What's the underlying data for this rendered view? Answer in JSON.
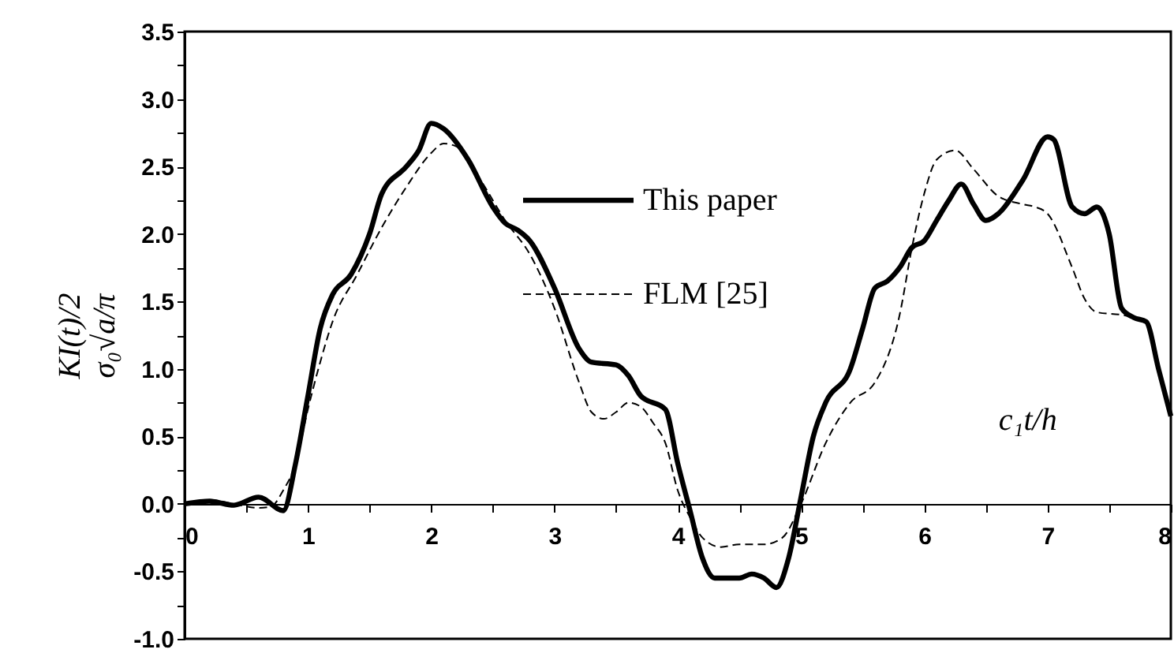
{
  "chart_data": {
    "type": "line",
    "xlabel": "c₁t/h",
    "ylabel": "KI(t)/2\nσ₀√a/π",
    "xlim": [
      0,
      8
    ],
    "ylim": [
      -1.0,
      3.5
    ],
    "xticks": [
      0,
      {
        "value": 0.5,
        "label": null
      },
      1,
      {
        "value": 1.5,
        "label": null
      },
      2,
      {
        "value": 2.5,
        "label": null
      },
      3,
      {
        "value": 3.5,
        "label": null
      },
      4,
      {
        "value": 4.5,
        "label": null
      },
      5,
      {
        "value": 5.5,
        "label": null
      },
      6,
      {
        "value": 6.5,
        "label": null
      },
      7,
      {
        "value": 7.5,
        "label": null
      },
      8
    ],
    "yticks": [
      {
        "value": -1,
        "label": "-1.0"
      },
      {
        "value": -0.75,
        "label": null
      },
      -0.5,
      {
        "value": -0.25,
        "label": null
      },
      {
        "value": 0,
        "label": "0.0"
      },
      {
        "value": 0.25,
        "label": null
      },
      0.5,
      {
        "value": 0.75,
        "label": null
      },
      {
        "value": 1,
        "label": "1.0"
      },
      {
        "value": 1.25,
        "label": null
      },
      1.5,
      {
        "value": 1.75,
        "label": null
      },
      {
        "value": 2,
        "label": "2.0"
      },
      {
        "value": 2.25,
        "label": null
      },
      2.5,
      {
        "value": 2.75,
        "label": null
      },
      {
        "value": 3,
        "label": "3.0"
      },
      {
        "value": 3.25,
        "label": null
      },
      3.5
    ],
    "grid": false,
    "legend": "top",
    "marker": "none",
    "series": [
      {
        "name": "This paper",
        "color": "#000000",
        "line_style": "solid",
        "x": [
          0,
          0.2,
          0.4,
          0.6,
          0.8,
          0.9,
          1.0,
          1.1,
          1.2,
          1.35,
          1.5,
          1.6,
          1.8,
          1.9,
          2.0,
          2.1,
          2.3,
          2.5,
          2.6,
          2.7,
          2.8,
          3.0,
          3.2,
          3.3,
          3.5,
          3.6,
          3.7,
          3.9,
          4.0,
          4.1,
          4.2,
          4.3,
          4.5,
          4.6,
          4.7,
          4.8,
          4.9,
          5.0,
          5.1,
          5.2,
          5.4,
          5.5,
          5.6,
          5.7,
          5.8,
          5.9,
          6.0,
          6.1,
          6.2,
          6.3,
          6.4,
          6.5,
          6.6,
          6.8,
          7.0,
          7.05,
          7.2,
          7.3,
          7.4,
          7.5,
          7.6,
          7.7,
          7.8,
          7.9,
          8.0
        ],
        "values": [
          0,
          0.02,
          -0.01,
          0.05,
          -0.05,
          0.3,
          0.8,
          1.3,
          1.55,
          1.7,
          2.0,
          2.3,
          2.5,
          2.62,
          2.82,
          2.78,
          2.55,
          2.2,
          2.08,
          2.03,
          1.95,
          1.6,
          1.15,
          1.05,
          1.03,
          0.95,
          0.8,
          0.7,
          0.3,
          -0.05,
          -0.4,
          -0.55,
          -0.55,
          -0.52,
          -0.55,
          -0.62,
          -0.4,
          0.05,
          0.5,
          0.75,
          1.0,
          1.3,
          1.6,
          1.65,
          1.75,
          1.9,
          1.95,
          2.1,
          2.25,
          2.37,
          2.22,
          2.1,
          2.15,
          2.4,
          2.72,
          2.7,
          2.2,
          2.15,
          2.2,
          2.0,
          1.45,
          1.38,
          1.35,
          1.0,
          0.65
        ]
      },
      {
        "name": "FLM [25]",
        "color": "#000000",
        "line_style": "dashed",
        "x": [
          0,
          0.2,
          0.4,
          0.6,
          0.7,
          0.8,
          0.9,
          1.0,
          1.1,
          1.2,
          1.4,
          1.6,
          1.8,
          2.0,
          2.1,
          2.2,
          2.4,
          2.6,
          2.8,
          3.0,
          3.2,
          3.3,
          3.4,
          3.5,
          3.6,
          3.7,
          3.8,
          3.9,
          4.0,
          4.1,
          4.2,
          4.35,
          4.5,
          4.7,
          4.85,
          5.0,
          5.2,
          5.4,
          5.6,
          5.8,
          5.9,
          6.0,
          6.1,
          6.25,
          6.4,
          6.6,
          6.8,
          6.9,
          7.0,
          7.2,
          7.3,
          7.4,
          7.6,
          7.7,
          7.8
        ],
        "values": [
          0,
          0.03,
          0.0,
          -0.03,
          -0.02,
          0.1,
          0.3,
          0.7,
          1.05,
          1.35,
          1.7,
          2.05,
          2.35,
          2.6,
          2.67,
          2.65,
          2.4,
          2.1,
          1.85,
          1.45,
          0.9,
          0.68,
          0.63,
          0.68,
          0.75,
          0.72,
          0.6,
          0.45,
          0.1,
          -0.1,
          -0.25,
          -0.32,
          -0.3,
          -0.3,
          -0.25,
          0.0,
          0.45,
          0.75,
          0.9,
          1.4,
          1.9,
          2.3,
          2.55,
          2.62,
          2.48,
          2.28,
          2.22,
          2.2,
          2.15,
          1.75,
          1.52,
          1.42,
          1.4,
          1.38,
          1.35
        ]
      }
    ]
  }
}
